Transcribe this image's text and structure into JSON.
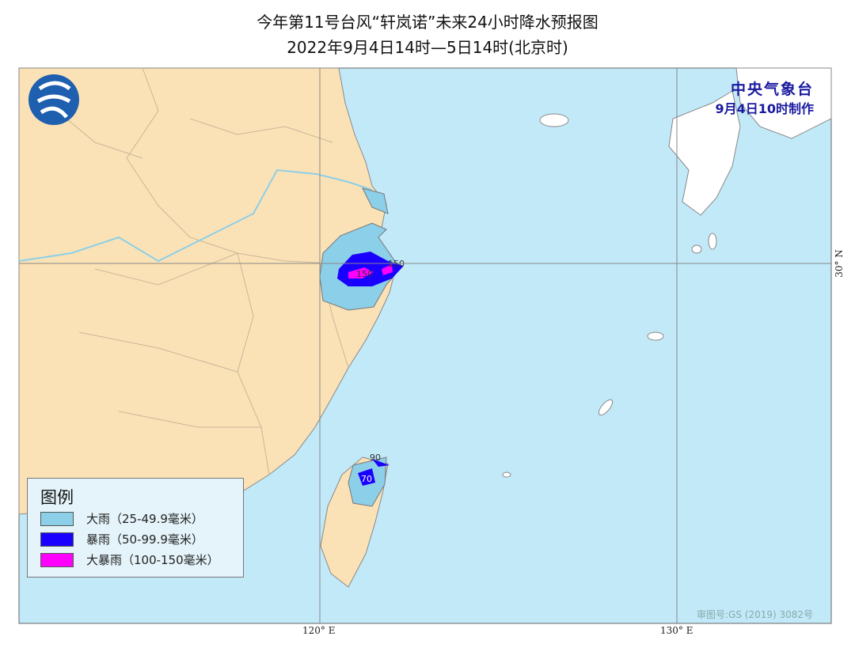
{
  "title": "今年第11号台风“轩岚诺”未来24小时降水预报图",
  "subtitle": "2022年9月4日14时—5日14时(北京时)",
  "issuer": {
    "name": "中央气象台",
    "issued": "9月4日10时制作"
  },
  "axes": {
    "lon_labels": [
      "120° E",
      "130° E"
    ],
    "lat_labels": [
      "30° N"
    ]
  },
  "contour_labels": [
    "150",
    "150",
    "90",
    "70"
  ],
  "legend": {
    "title": "图例",
    "items": [
      {
        "label": "大雨（25-49.9毫米）",
        "color": "#8ccfe8"
      },
      {
        "label": "暴雨（50-99.9毫米）",
        "color": "#1a00ff"
      },
      {
        "label": "大暴雨（100-150毫米）",
        "color": "#ff00ff"
      }
    ]
  },
  "approval": "审图号:GS (2019) 3082号",
  "colors": {
    "sea": "#c2e9f8",
    "land": "#fbe2b6",
    "river": "#8ccfe8"
  }
}
